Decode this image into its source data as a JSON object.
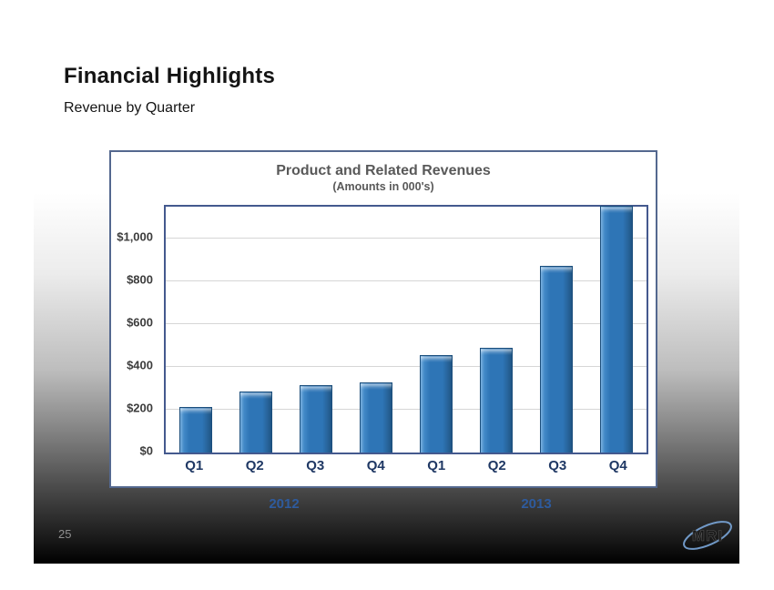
{
  "slide": {
    "title": "Financial Highlights",
    "subtitle": "Revenue by Quarter",
    "page_number": "25",
    "logo_text": "MRI"
  },
  "chart_data": {
    "type": "bar",
    "title": "Product and Related Revenues",
    "subtitle": "(Amounts in 000's)",
    "categories": [
      "Q1",
      "Q2",
      "Q3",
      "Q4",
      "Q1",
      "Q2",
      "Q3",
      "Q4"
    ],
    "values": [
      215,
      285,
      315,
      330,
      455,
      490,
      875,
      1155
    ],
    "year_groups": [
      {
        "label": "2012",
        "start": 0,
        "end": 3
      },
      {
        "label": "2013",
        "start": 4,
        "end": 7
      }
    ],
    "yticks": [
      {
        "value": 0,
        "label": "$0"
      },
      {
        "value": 200,
        "label": "$200"
      },
      {
        "value": 400,
        "label": "$400"
      },
      {
        "value": 600,
        "label": "$600"
      },
      {
        "value": 800,
        "label": "$800"
      },
      {
        "value": 1000,
        "label": "$1,000"
      }
    ],
    "ylim": [
      0,
      1150
    ],
    "grid": true,
    "legend": false,
    "colors": {
      "bar_fill": "#2e75b6",
      "bar_edge": "#1b4e7c",
      "axis_border": "#44598e",
      "gridline": "#d6d6d6",
      "category_label": "#1f3864",
      "year_label": "#2e5b9e",
      "chart_title": "#595959"
    }
  }
}
